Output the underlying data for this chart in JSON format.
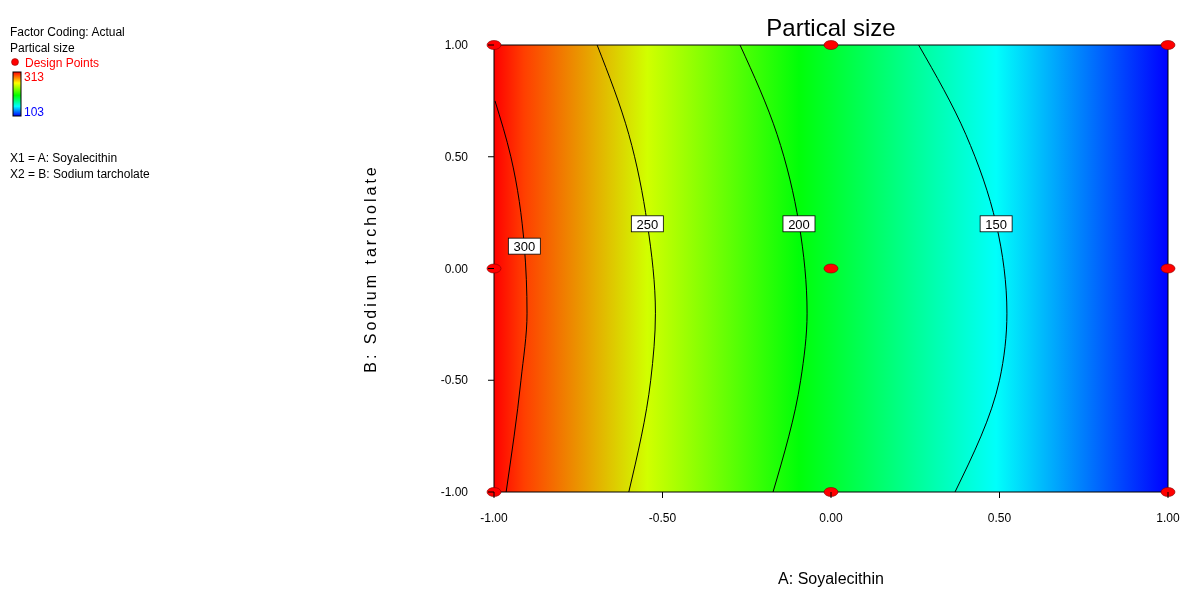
{
  "chart_data": {
    "type": "line",
    "title": "Partical size",
    "xlabel": "A: Soyalecithin",
    "ylabel": "B: Sodium tarcholate",
    "xlim": [
      -1,
      1
    ],
    "xticks": [
      {
        "value": -1,
        "label": "-1.00"
      },
      {
        "value": -0.5,
        "label": "-0.50"
      },
      {
        "value": 0,
        "label": "0.00"
      },
      {
        "value": 0.5,
        "label": "0.50"
      },
      {
        "value": 1,
        "label": "1.00"
      }
    ],
    "ylim": [
      -1,
      1
    ],
    "yticks": [
      {
        "value": -1,
        "label": "-1.00"
      },
      {
        "value": -0.5,
        "label": "-0.50"
      },
      {
        "value": 0,
        "label": "0.00"
      },
      {
        "value": 0.5,
        "label": "0.50"
      },
      {
        "value": 1,
        "label": "1.00"
      }
    ],
    "clim": [
      103,
      313
    ],
    "cticks": [
      103,
      313
    ],
    "series": [
      {
        "name": "300",
        "color": "#000000",
        "x": [
          -0.997,
          -0.95,
          -0.91,
          -0.902,
          -0.92,
          -0.964
        ],
        "values": [
          0.75,
          0.5,
          0.1,
          -0.2,
          -0.5,
          -1
        ]
      },
      {
        "name": "250",
        "color": "#000000",
        "x": [
          -0.694,
          -0.6,
          -0.545,
          -0.521,
          -0.535,
          -0.6
        ],
        "values": [
          1,
          0.6,
          0.2,
          -0.2,
          -0.5,
          -1
        ]
      },
      {
        "name": "200",
        "color": "#000000",
        "x": [
          -0.27,
          -0.16,
          -0.095,
          -0.071,
          -0.09,
          -0.172
        ],
        "values": [
          1,
          0.6,
          0.2,
          -0.2,
          -0.5,
          -1
        ]
      },
      {
        "name": "150",
        "color": "#000000",
        "x": [
          0.26,
          0.4,
          0.49,
          0.522,
          0.5,
          0.368
        ],
        "values": [
          1,
          0.6,
          0.2,
          -0.2,
          -0.5,
          -1
        ]
      },
      {
        "name": "Design Points",
        "type": "scatter",
        "marker": "circle",
        "color": "#ff0000",
        "x": [
          -1,
          -1,
          -1,
          0,
          0,
          0,
          1,
          1,
          1
        ],
        "values": [
          1,
          0,
          -1,
          1,
          0,
          -1,
          1,
          0,
          -1
        ]
      }
    ],
    "legend": "top left",
    "annotations": [
      "Factor Coding: Actual",
      "Partical size",
      "X1 = A: Soyalecithin",
      "X2 = B: Sodium tarcholate"
    ]
  }
}
